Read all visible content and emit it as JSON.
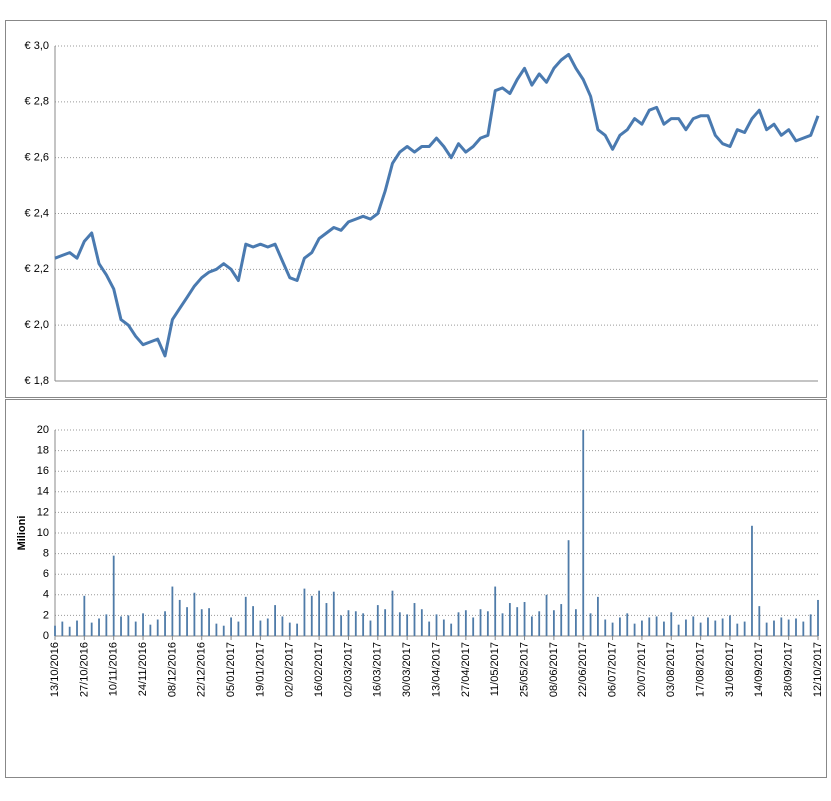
{
  "chart_data": [
    {
      "type": "line",
      "values": [
        2.24,
        2.25,
        2.26,
        2.24,
        2.3,
        2.33,
        2.22,
        2.18,
        2.13,
        2.02,
        2.0,
        1.96,
        1.93,
        1.94,
        1.95,
        1.89,
        2.02,
        2.06,
        2.1,
        2.14,
        2.17,
        2.19,
        2.2,
        2.22,
        2.2,
        2.16,
        2.29,
        2.28,
        2.29,
        2.28,
        2.29,
        2.23,
        2.17,
        2.16,
        2.24,
        2.26,
        2.31,
        2.33,
        2.35,
        2.34,
        2.37,
        2.38,
        2.39,
        2.38,
        2.4,
        2.48,
        2.58,
        2.62,
        2.64,
        2.62,
        2.64,
        2.64,
        2.67,
        2.64,
        2.6,
        2.65,
        2.62,
        2.64,
        2.67,
        2.68,
        2.84,
        2.85,
        2.83,
        2.88,
        2.92,
        2.86,
        2.9,
        2.87,
        2.92,
        2.95,
        2.97,
        2.92,
        2.88,
        2.82,
        2.7,
        2.68,
        2.63,
        2.68,
        2.7,
        2.74,
        2.72,
        2.77,
        2.78,
        2.72,
        2.74,
        2.74,
        2.7,
        2.74,
        2.75,
        2.75,
        2.68,
        2.65,
        2.64,
        2.7,
        2.69,
        2.74,
        2.77,
        2.7,
        2.72,
        2.68,
        2.7,
        2.66,
        2.67,
        2.68,
        2.75
      ],
      "color": "#4a7ab0",
      "ylim": [
        1.8,
        3.0
      ],
      "yticks": [
        {
          "value": 1.8,
          "label": "€ 1,8"
        },
        {
          "value": 2.0,
          "label": "€ 2,0"
        },
        {
          "value": 2.2,
          "label": "€ 2,2"
        },
        {
          "value": 2.4,
          "label": "€ 2,4"
        },
        {
          "value": 2.6,
          "label": "€ 2,6"
        },
        {
          "value": 2.8,
          "label": "€ 2,8"
        },
        {
          "value": 3.0,
          "label": "€ 3,0"
        }
      ],
      "grid": true
    },
    {
      "type": "bar",
      "y_label": "Milioni",
      "categories": [
        "13/10/2016",
        null,
        null,
        null,
        "27/10/2016",
        null,
        null,
        null,
        "10/11/2016",
        null,
        null,
        null,
        "24/11/2016",
        null,
        null,
        null,
        "08/12/2016",
        null,
        null,
        null,
        "22/12/2016",
        null,
        null,
        null,
        "05/01/2017",
        null,
        null,
        null,
        "19/01/2017",
        null,
        null,
        null,
        "02/02/2017",
        null,
        null,
        null,
        "16/02/2017",
        null,
        null,
        null,
        "02/03/2017",
        null,
        null,
        null,
        "16/03/2017",
        null,
        null,
        null,
        "30/03/2017",
        null,
        null,
        null,
        "13/04/2017",
        null,
        null,
        null,
        "27/04/2017",
        null,
        null,
        null,
        "11/05/2017",
        null,
        null,
        null,
        "25/05/2017",
        null,
        null,
        null,
        "08/06/2017",
        null,
        null,
        null,
        "22/06/2017",
        null,
        null,
        null,
        "06/07/2017",
        null,
        null,
        null,
        "20/07/2017",
        null,
        null,
        null,
        "03/08/2017",
        null,
        null,
        null,
        "17/08/2017",
        null,
        null,
        null,
        "31/08/2017",
        null,
        null,
        null,
        "14/09/2017",
        null,
        null,
        null,
        "28/09/2017",
        null,
        null,
        null,
        "12/10/2017"
      ],
      "values": [
        1.0,
        1.4,
        0.9,
        1.5,
        3.9,
        1.3,
        1.7,
        2.1,
        7.8,
        1.9,
        2.0,
        1.4,
        2.2,
        1.1,
        1.6,
        2.4,
        4.8,
        3.5,
        2.8,
        4.2,
        2.6,
        2.7,
        1.2,
        1.0,
        1.8,
        1.4,
        3.8,
        2.9,
        1.5,
        1.7,
        3.0,
        1.9,
        1.3,
        1.2,
        4.6,
        3.9,
        4.4,
        3.2,
        4.3,
        2.0,
        2.5,
        2.4,
        2.2,
        1.5,
        3.0,
        2.6,
        4.4,
        2.3,
        2.1,
        3.2,
        2.6,
        1.4,
        2.1,
        1.6,
        1.2,
        2.3,
        2.5,
        1.8,
        2.6,
        2.4,
        4.8,
        2.2,
        3.2,
        2.8,
        3.3,
        1.9,
        2.4,
        4.0,
        2.5,
        3.1,
        9.3,
        2.6,
        20.0,
        2.2,
        3.8,
        1.6,
        1.3,
        1.8,
        2.2,
        1.2,
        1.5,
        1.8,
        1.9,
        1.4,
        2.3,
        1.1,
        1.6,
        1.9,
        1.3,
        1.8,
        1.5,
        1.7,
        2.0,
        1.2,
        1.4,
        10.7,
        2.9,
        1.3,
        1.5,
        1.8,
        1.6,
        1.7,
        1.4,
        2.1,
        3.5
      ],
      "color": "#4f7ba8",
      "ylim": [
        0,
        20
      ],
      "yticks": [
        0,
        2,
        4,
        6,
        8,
        10,
        12,
        14,
        16,
        18,
        20
      ],
      "grid": true
    }
  ]
}
